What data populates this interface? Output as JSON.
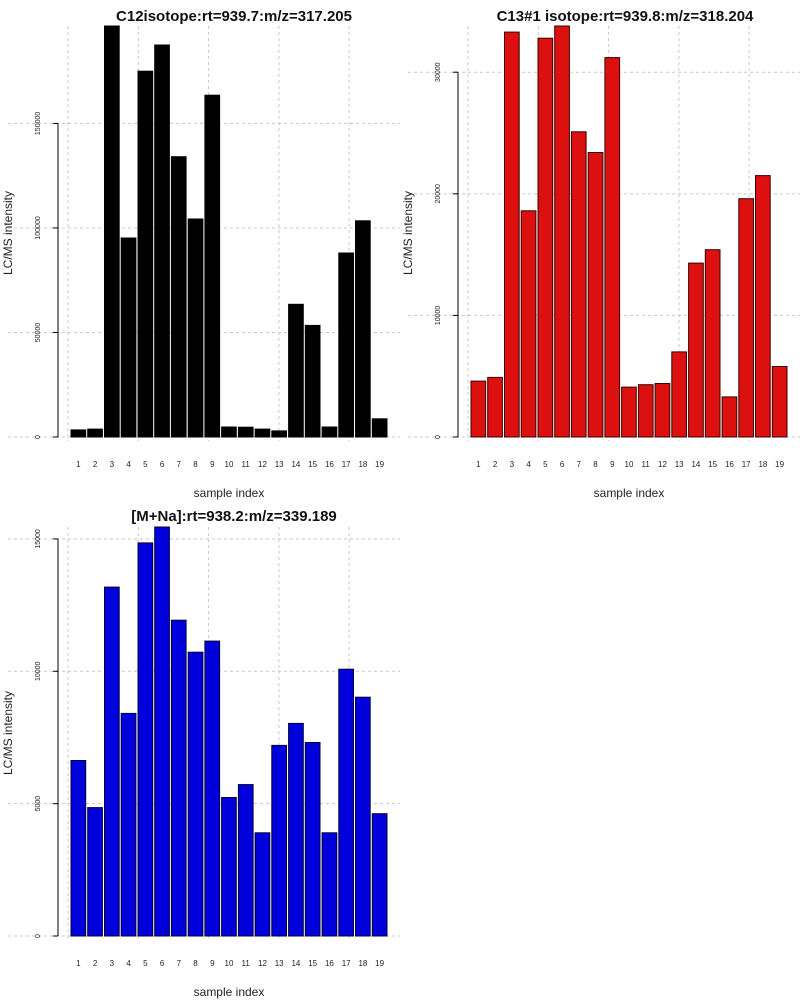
{
  "chart_data": [
    {
      "type": "bar",
      "title": "C12isotope:rt=939.7:m/z=317.205",
      "xlabel": "sample index",
      "ylabel": "LC/MS intensity",
      "categories": [
        "1",
        "2",
        "3",
        "4",
        "5",
        "6",
        "7",
        "8",
        "9",
        "10",
        "11",
        "12",
        "13",
        "14",
        "15",
        "16",
        "17",
        "18",
        "19"
      ],
      "values": [
        3400,
        3800,
        196600,
        95200,
        175000,
        187500,
        134100,
        104300,
        163500,
        4800,
        4700,
        3800,
        2900,
        63500,
        53400,
        4800,
        88000,
        103400,
        8700
      ],
      "yticks": [
        0,
        50000,
        100000,
        150000
      ],
      "ytick_labels": [
        "0",
        "50000",
        "100000",
        "150000"
      ],
      "ylim": [
        0,
        196600
      ],
      "grid": true,
      "color": "#000000",
      "border_color": "#000000"
    },
    {
      "type": "bar",
      "title": "C13#1 isotope:rt=939.8:m/z=318.204",
      "xlabel": "sample index",
      "ylabel": "LC/MS intensity",
      "categories": [
        "1",
        "2",
        "3",
        "4",
        "5",
        "6",
        "7",
        "8",
        "9",
        "10",
        "11",
        "12",
        "13",
        "14",
        "15",
        "16",
        "17",
        "18",
        "19"
      ],
      "values": [
        4600,
        4900,
        33300,
        18600,
        32800,
        33800,
        25100,
        23400,
        31200,
        4100,
        4300,
        4400,
        7000,
        14300,
        15400,
        3300,
        19600,
        21500,
        5800
      ],
      "yticks": [
        0,
        10000,
        20000,
        30000
      ],
      "ytick_labels": [
        "0",
        "10000",
        "20000",
        "30000"
      ],
      "ylim": [
        0,
        33800
      ],
      "grid": true,
      "color": "#dd1010",
      "border_color": "#3a0000"
    },
    {
      "type": "bar",
      "title": "[M+Na]:rt=938.2:m/z=339.189",
      "xlabel": "sample index",
      "ylabel": "LC/MS intensity",
      "categories": [
        "1",
        "2",
        "3",
        "4",
        "5",
        "6",
        "7",
        "8",
        "9",
        "10",
        "11",
        "12",
        "13",
        "14",
        "15",
        "16",
        "17",
        "18",
        "19"
      ],
      "values": [
        6630,
        4850,
        13180,
        8410,
        14850,
        15450,
        11930,
        10720,
        11140,
        5230,
        5720,
        3900,
        7200,
        8030,
        7310,
        3900,
        10080,
        9020,
        4620
      ],
      "yticks": [
        0,
        5000,
        10000,
        15000
      ],
      "ytick_labels": [
        "0",
        "5000",
        "10000",
        "15000"
      ],
      "ylim": [
        0,
        15450
      ],
      "grid": true,
      "color": "#0000dd",
      "border_color": "#000033"
    }
  ]
}
